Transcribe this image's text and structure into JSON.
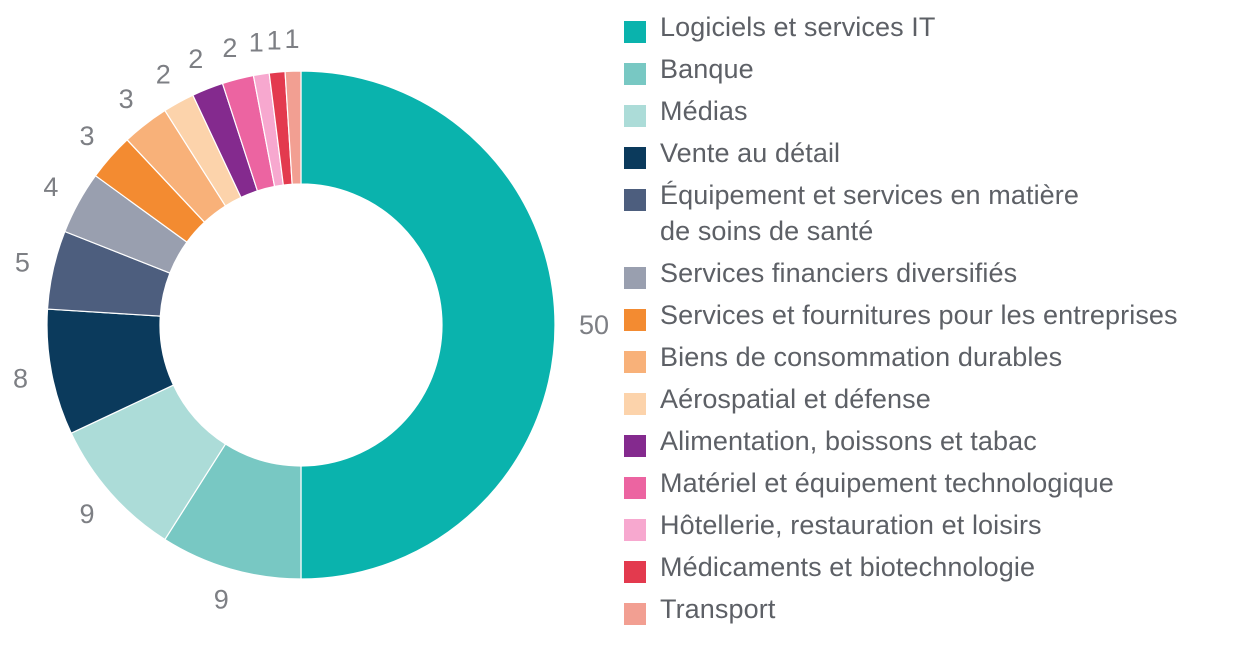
{
  "chart_data": {
    "type": "pie",
    "variant": "donut",
    "title": "",
    "legend_position": "right",
    "categories": [
      "Logiciels et services IT",
      "Banque",
      "Médias",
      "Vente au détail",
      "Équipement et services en matière de soins de santé",
      "Services financiers diversifiés",
      "Services et fournitures pour les entreprises",
      "Biens de consommation durables",
      "Aérospatial et défense",
      "Alimentation, boissons et tabac",
      "Matériel et équipement technologique",
      "Hôtellerie, restauration et loisirs",
      "Médicaments et biotechnologie",
      "Transport"
    ],
    "values": [
      50,
      9,
      9,
      8,
      5,
      4,
      3,
      3,
      2,
      2,
      2,
      1,
      1,
      1
    ],
    "value_labels": [
      "50",
      "9",
      "9",
      "8",
      "5",
      "4",
      "3",
      "3",
      "2",
      "2",
      "2",
      "1",
      "1",
      "1"
    ],
    "colors": [
      "#0ab3ad",
      "#78c8c3",
      "#acdcd8",
      "#0b3a5c",
      "#4d5e7e",
      "#999faf",
      "#f38b31",
      "#f8b179",
      "#fcd3ab",
      "#842a8e",
      "#ec64a1",
      "#f7a8cf",
      "#e33a4e",
      "#f29f92"
    ]
  },
  "legend": {
    "items": [
      {
        "label_lines": [
          "Logiciels et services IT"
        ]
      },
      {
        "label_lines": [
          "Banque"
        ]
      },
      {
        "label_lines": [
          "Médias"
        ]
      },
      {
        "label_lines": [
          "Vente au détail"
        ]
      },
      {
        "label_lines": [
          "Équipement et services en matière",
          "de soins de santé"
        ]
      },
      {
        "label_lines": [
          "Services financiers diversifiés"
        ]
      },
      {
        "label_lines": [
          "Services et fournitures pour les entreprises"
        ]
      },
      {
        "label_lines": [
          "Biens de consommation durables"
        ]
      },
      {
        "label_lines": [
          "Aérospatial et défense"
        ]
      },
      {
        "label_lines": [
          "Alimentation, boissons et tabac"
        ]
      },
      {
        "label_lines": [
          "Matériel et équipement technologique"
        ]
      },
      {
        "label_lines": [
          "Hôtellerie, restauration et loisirs"
        ]
      },
      {
        "label_lines": [
          "Médicaments et biotechnologie"
        ]
      },
      {
        "label_lines": [
          "Transport"
        ]
      }
    ]
  }
}
